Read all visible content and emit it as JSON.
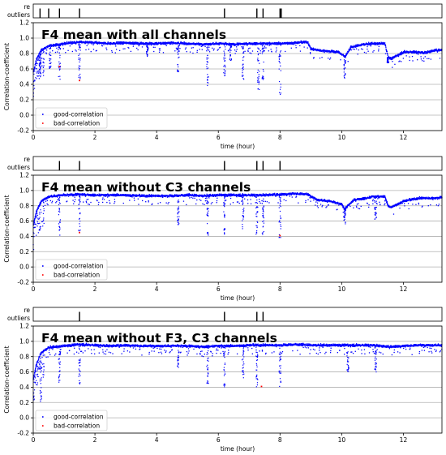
{
  "chart_data": [
    {
      "type": "scatter",
      "title": "F4 mean with all channels",
      "xlabel": "time (hour)",
      "ylabel": "Correlation-coefficient",
      "xlim": [
        0,
        13.25
      ],
      "ylim": [
        -0.2,
        1.2
      ],
      "xticks": [
        0,
        2,
        4,
        6,
        8,
        10,
        12
      ],
      "yticks": [
        -0.2,
        0.0,
        0.2,
        0.4,
        0.6,
        0.8,
        1.0,
        1.2
      ],
      "grid": "horizontal",
      "legend_position": "lower-left",
      "legend": [
        {
          "name": "good-correlation",
          "color": "#0000ff"
        },
        {
          "name": "bad-correlation",
          "color": "#ff0000"
        }
      ],
      "strip_labels": [
        "re",
        "outliers"
      ],
      "outlier_marks": [
        0.22,
        0.5,
        0.85,
        1.5,
        6.2,
        7.25,
        7.45,
        8.0,
        8.04
      ],
      "trend": [
        [
          0,
          0.55
        ],
        [
          0.1,
          0.72
        ],
        [
          0.25,
          0.84
        ],
        [
          0.5,
          0.9
        ],
        [
          1.0,
          0.93
        ],
        [
          1.5,
          0.95
        ],
        [
          2.0,
          0.94
        ],
        [
          2.5,
          0.93
        ],
        [
          3.0,
          0.94
        ],
        [
          3.5,
          0.93
        ],
        [
          4.0,
          0.93
        ],
        [
          4.5,
          0.94
        ],
        [
          5.0,
          0.93
        ],
        [
          5.5,
          0.92
        ],
        [
          6.0,
          0.93
        ],
        [
          6.5,
          0.92
        ],
        [
          7.0,
          0.93
        ],
        [
          7.5,
          0.93
        ],
        [
          8.0,
          0.93
        ],
        [
          8.5,
          0.94
        ],
        [
          8.9,
          0.95
        ],
        [
          9.0,
          0.86
        ],
        [
          9.3,
          0.84
        ],
        [
          9.6,
          0.83
        ],
        [
          9.9,
          0.82
        ],
        [
          10.1,
          0.76
        ],
        [
          10.3,
          0.88
        ],
        [
          10.7,
          0.92
        ],
        [
          11.0,
          0.93
        ],
        [
          11.4,
          0.93
        ],
        [
          11.5,
          0.76
        ],
        [
          11.6,
          0.73
        ],
        [
          12.0,
          0.82
        ],
        [
          12.4,
          0.82
        ],
        [
          12.7,
          0.81
        ],
        [
          13.0,
          0.84
        ],
        [
          13.25,
          0.85
        ]
      ],
      "dips": [
        [
          0.22,
          0.55
        ],
        [
          0.55,
          0.6
        ],
        [
          0.85,
          0.45
        ],
        [
          1.5,
          0.45
        ],
        [
          3.7,
          0.75
        ],
        [
          4.7,
          0.55
        ],
        [
          5.65,
          0.38
        ],
        [
          6.2,
          0.45
        ],
        [
          6.4,
          0.7
        ],
        [
          6.8,
          0.45
        ],
        [
          7.3,
          0.3
        ],
        [
          7.45,
          0.45
        ],
        [
          8.0,
          0.25
        ],
        [
          10.1,
          0.47
        ],
        [
          11.5,
          0.68
        ]
      ],
      "bad_points": [
        [
          0.85,
          0.63
        ],
        [
          1.5,
          0.45
        ]
      ]
    },
    {
      "type": "scatter",
      "title": "F4 mean without  C3 channels",
      "xlabel": "time (hour)",
      "ylabel": "Correlation-coefficient",
      "xlim": [
        0,
        13.25
      ],
      "ylim": [
        -0.2,
        1.2
      ],
      "xticks": [
        0,
        2,
        4,
        6,
        8,
        10,
        12
      ],
      "yticks": [
        -0.2,
        0.0,
        0.2,
        0.4,
        0.6,
        0.8,
        1.0,
        1.2
      ],
      "grid": "horizontal",
      "legend_position": "lower-left",
      "legend": [
        {
          "name": "good-correlation",
          "color": "#0000ff"
        },
        {
          "name": "bad-correlation",
          "color": "#ff0000"
        }
      ],
      "strip_labels": [
        "re",
        "outliers"
      ],
      "outlier_marks": [
        0.85,
        1.5,
        6.2,
        7.25,
        7.45,
        8.0
      ],
      "trend": [
        [
          0,
          0.55
        ],
        [
          0.1,
          0.72
        ],
        [
          0.25,
          0.86
        ],
        [
          0.5,
          0.92
        ],
        [
          1.0,
          0.94
        ],
        [
          1.5,
          0.95
        ],
        [
          2.0,
          0.94
        ],
        [
          2.5,
          0.94
        ],
        [
          3.0,
          0.94
        ],
        [
          3.5,
          0.93
        ],
        [
          4.0,
          0.93
        ],
        [
          4.5,
          0.93
        ],
        [
          5.0,
          0.94
        ],
        [
          5.5,
          0.93
        ],
        [
          6.0,
          0.94
        ],
        [
          6.5,
          0.94
        ],
        [
          7.0,
          0.94
        ],
        [
          7.5,
          0.94
        ],
        [
          8.0,
          0.95
        ],
        [
          8.5,
          0.96
        ],
        [
          8.9,
          0.95
        ],
        [
          9.2,
          0.88
        ],
        [
          9.6,
          0.86
        ],
        [
          10.0,
          0.82
        ],
        [
          10.1,
          0.76
        ],
        [
          10.4,
          0.88
        ],
        [
          10.8,
          0.9
        ],
        [
          11.0,
          0.92
        ],
        [
          11.4,
          0.92
        ],
        [
          11.5,
          0.8
        ],
        [
          11.6,
          0.78
        ],
        [
          12.0,
          0.86
        ],
        [
          12.5,
          0.9
        ],
        [
          13.0,
          0.9
        ],
        [
          13.25,
          0.91
        ]
      ],
      "dips": [
        [
          0.85,
          0.38
        ],
        [
          1.5,
          0.45
        ],
        [
          4.7,
          0.55
        ],
        [
          5.65,
          0.4
        ],
        [
          6.2,
          0.42
        ],
        [
          6.8,
          0.5
        ],
        [
          7.25,
          0.37
        ],
        [
          7.45,
          0.4
        ],
        [
          8.0,
          0.38
        ],
        [
          10.1,
          0.55
        ],
        [
          11.1,
          0.62
        ]
      ],
      "bad_points": [
        [
          1.5,
          0.45
        ],
        [
          8.0,
          0.41
        ]
      ]
    },
    {
      "type": "scatter",
      "title": "F4 mean without  F3, C3 channels",
      "xlabel": "time (hour)",
      "ylabel": "Correlation-coefficient",
      "xlim": [
        0,
        13.25
      ],
      "ylim": [
        -0.2,
        1.2
      ],
      "xticks": [
        0,
        2,
        4,
        6,
        8,
        10,
        12
      ],
      "yticks": [
        -0.2,
        0.0,
        0.2,
        0.4,
        0.6,
        0.8,
        1.0,
        1.2
      ],
      "grid": "horizontal",
      "legend_position": "lower-left",
      "legend": [
        {
          "name": "good-correlation",
          "color": "#0000ff"
        },
        {
          "name": "bad-correlation",
          "color": "#ff0000"
        }
      ],
      "strip_labels": [
        "re",
        "outliers"
      ],
      "outlier_marks": [
        1.5,
        6.2,
        7.25,
        7.45
      ],
      "trend": [
        [
          0,
          0.5
        ],
        [
          0.1,
          0.7
        ],
        [
          0.25,
          0.85
        ],
        [
          0.5,
          0.92
        ],
        [
          1.0,
          0.94
        ],
        [
          1.5,
          0.96
        ],
        [
          2.0,
          0.95
        ],
        [
          2.5,
          0.94
        ],
        [
          3.0,
          0.95
        ],
        [
          3.5,
          0.94
        ],
        [
          4.0,
          0.94
        ],
        [
          4.5,
          0.94
        ],
        [
          5.0,
          0.94
        ],
        [
          5.5,
          0.93
        ],
        [
          6.0,
          0.94
        ],
        [
          6.5,
          0.94
        ],
        [
          7.0,
          0.95
        ],
        [
          7.5,
          0.95
        ],
        [
          8.0,
          0.95
        ],
        [
          8.5,
          0.96
        ],
        [
          9.0,
          0.95
        ],
        [
          9.5,
          0.95
        ],
        [
          10.0,
          0.95
        ],
        [
          10.5,
          0.95
        ],
        [
          11.0,
          0.95
        ],
        [
          11.5,
          0.93
        ],
        [
          12.0,
          0.94
        ],
        [
          12.5,
          0.95
        ],
        [
          13.0,
          0.95
        ],
        [
          13.25,
          0.95
        ]
      ],
      "dips": [
        [
          0.25,
          0.2
        ],
        [
          0.85,
          0.45
        ],
        [
          1.5,
          0.42
        ],
        [
          4.7,
          0.6
        ],
        [
          5.65,
          0.45
        ],
        [
          6.2,
          0.4
        ],
        [
          6.8,
          0.5
        ],
        [
          7.25,
          0.4
        ],
        [
          8.0,
          0.4
        ],
        [
          10.2,
          0.6
        ],
        [
          11.1,
          0.6
        ]
      ],
      "bad_points": [
        [
          7.4,
          0.41
        ]
      ]
    }
  ]
}
